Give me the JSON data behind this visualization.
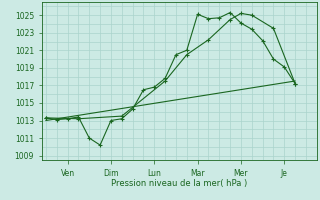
{
  "background_color": "#cceae4",
  "grid_color": "#aad4cc",
  "line_color": "#1a6620",
  "title": "",
  "xlabel": "Pression niveau de la mer( hPa )",
  "ylim": [
    1008.5,
    1026.5
  ],
  "yticks": [
    1009,
    1011,
    1013,
    1015,
    1017,
    1019,
    1021,
    1023,
    1025
  ],
  "day_labels": [
    "Ven",
    "Dim",
    "Lun",
    "Mar",
    "Mer",
    "Je"
  ],
  "xtick_positions": [
    1.0,
    3.0,
    5.0,
    7.0,
    9.0,
    11.0
  ],
  "xlim": [
    -0.2,
    12.5
  ],
  "line1_x": [
    0,
    0.5,
    1.0,
    1.5,
    2.0,
    2.5,
    3.0,
    3.5,
    4.0,
    4.5,
    5.0,
    5.5,
    6.0,
    6.5,
    7.0,
    7.5,
    8.0,
    8.5,
    9.0,
    9.5,
    10.0,
    10.5,
    11.0,
    11.5
  ],
  "line1_y": [
    1013.3,
    1013.1,
    1013.2,
    1013.4,
    1011.0,
    1010.2,
    1013.0,
    1013.2,
    1014.3,
    1016.5,
    1016.8,
    1017.8,
    1020.5,
    1021.0,
    1025.1,
    1024.6,
    1024.7,
    1025.3,
    1024.1,
    1023.4,
    1022.1,
    1020.0,
    1019.1,
    1017.2
  ],
  "line2_x": [
    0,
    1.5,
    3.5,
    5.5,
    6.5,
    7.5,
    8.5,
    9.0,
    9.5,
    10.5,
    11.5
  ],
  "line2_y": [
    1013.3,
    1013.2,
    1013.5,
    1017.5,
    1020.5,
    1022.2,
    1024.5,
    1025.2,
    1025.0,
    1023.5,
    1017.2
  ],
  "line3_x": [
    0,
    11.5
  ],
  "line3_y": [
    1013.0,
    1017.5
  ]
}
